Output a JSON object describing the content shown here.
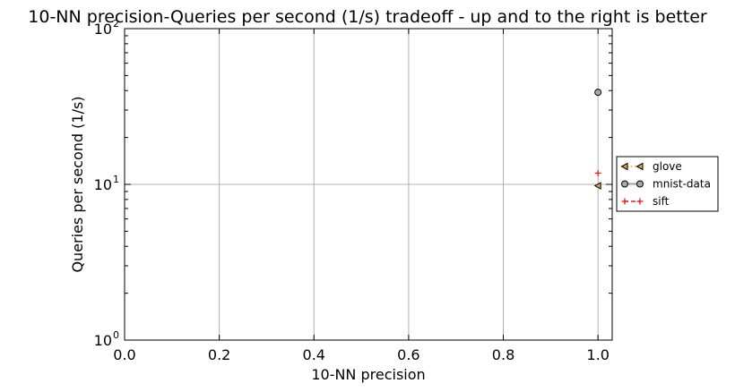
{
  "chart_data": {
    "type": "scatter",
    "title": "10-NN precision-Queries per second (1/s) tradeoff - up and to the right is better",
    "xlabel": "10-NN precision",
    "ylabel": "Queries per second (1/s)",
    "xlim": [
      0.0,
      1.03
    ],
    "ylim": [
      1,
      100
    ],
    "yscale": "log",
    "grid": true,
    "legend_position": "right",
    "x_ticks": [
      "0.0",
      "0.2",
      "0.4",
      "0.6",
      "0.8",
      "1.0"
    ],
    "y_ticks": [
      {
        "value": 1,
        "base": "10",
        "exp": "0"
      },
      {
        "value": 10,
        "base": "10",
        "exp": "1"
      },
      {
        "value": 100,
        "base": "10",
        "exp": "2"
      }
    ],
    "series": [
      {
        "name": "glove",
        "marker": "triangle-left",
        "color": "#e8a33a",
        "line": "dotted",
        "points": [
          {
            "x": 1.0,
            "y": 9.8
          }
        ]
      },
      {
        "name": "mnist-data",
        "marker": "circle",
        "color": "#a9a9a9",
        "line": "solid",
        "points": [
          {
            "x": 1.0,
            "y": 39
          }
        ]
      },
      {
        "name": "sift",
        "marker": "plus",
        "color": "#e02020",
        "line": "dashed",
        "points": [
          {
            "x": 1.0,
            "y": 11.8
          }
        ]
      }
    ]
  }
}
